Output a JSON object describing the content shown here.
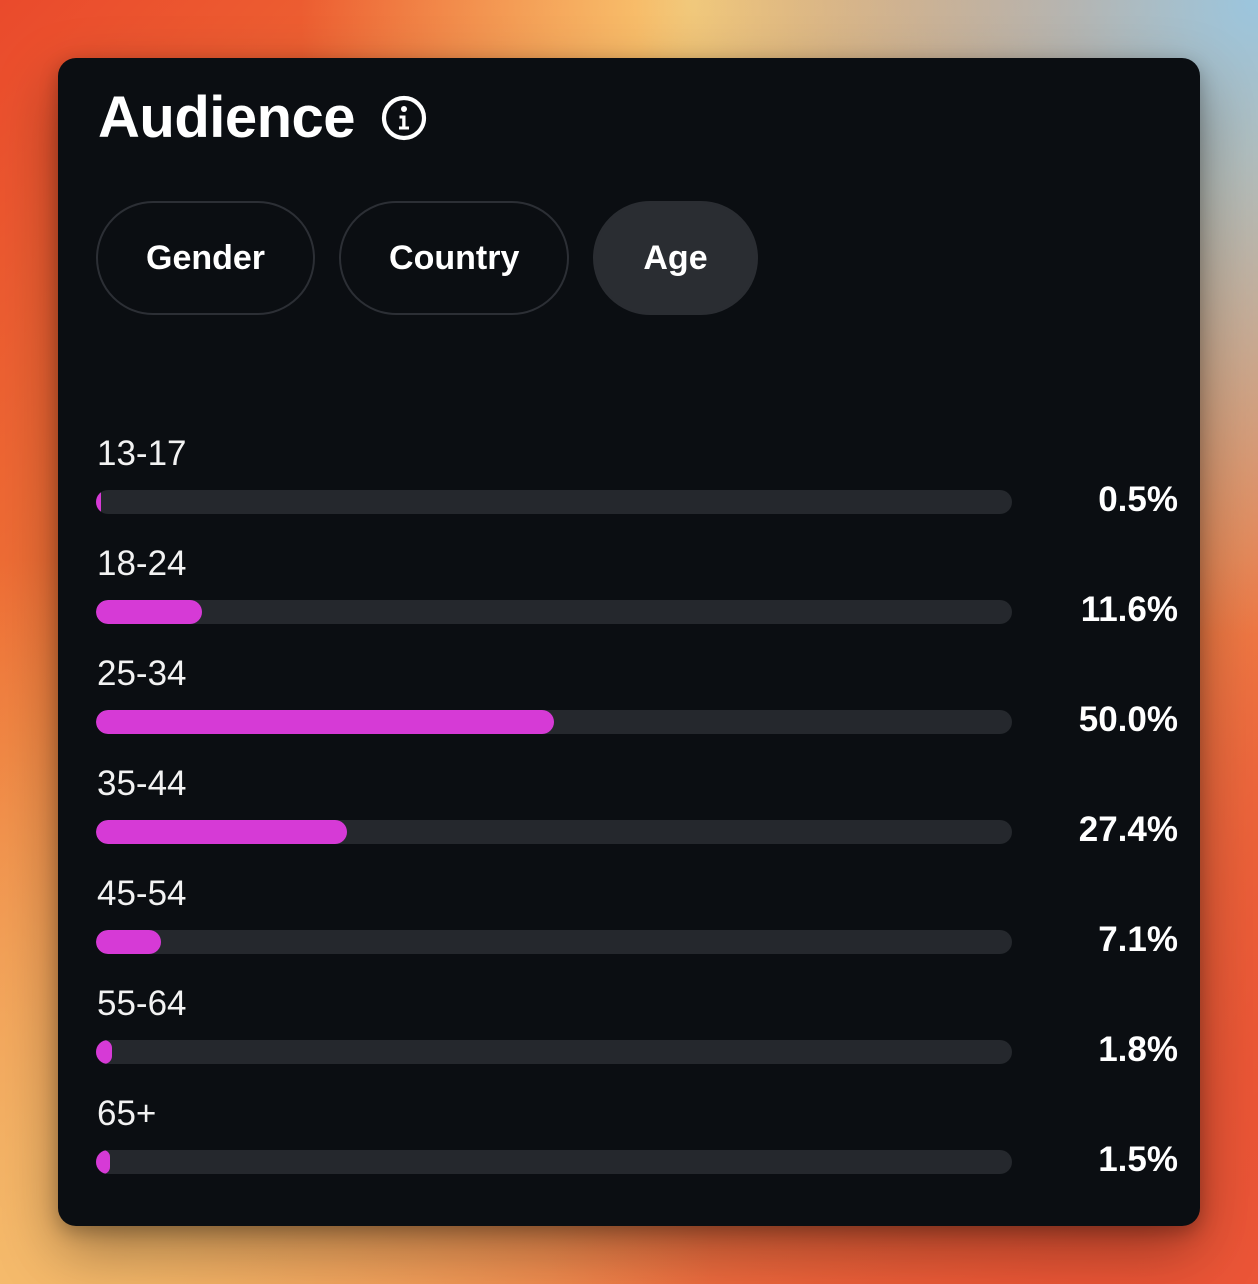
{
  "card": {
    "title": "Audience",
    "info_icon": "info-circle-icon"
  },
  "tabs": [
    {
      "label": "Gender",
      "active": false
    },
    {
      "label": "Country",
      "active": false
    },
    {
      "label": "Age",
      "active": true
    }
  ],
  "colors": {
    "card_background": "#0b0e12",
    "bar_fill": "#d63ad6",
    "bar_track": "#25282d",
    "active_tab": "#2a2d32"
  },
  "chart_data": {
    "type": "bar",
    "categories": [
      "13-17",
      "18-24",
      "25-34",
      "35-44",
      "45-54",
      "55-64",
      "65+"
    ],
    "values": [
      0.5,
      11.6,
      50.0,
      27.4,
      7.1,
      1.8,
      1.5
    ],
    "value_labels": [
      "0.5%",
      "11.6%",
      "50.0%",
      "27.4%",
      "7.1%",
      "1.8%",
      "1.5%"
    ],
    "unit": "%",
    "xlim": [
      0,
      100
    ],
    "orientation": "horizontal"
  }
}
